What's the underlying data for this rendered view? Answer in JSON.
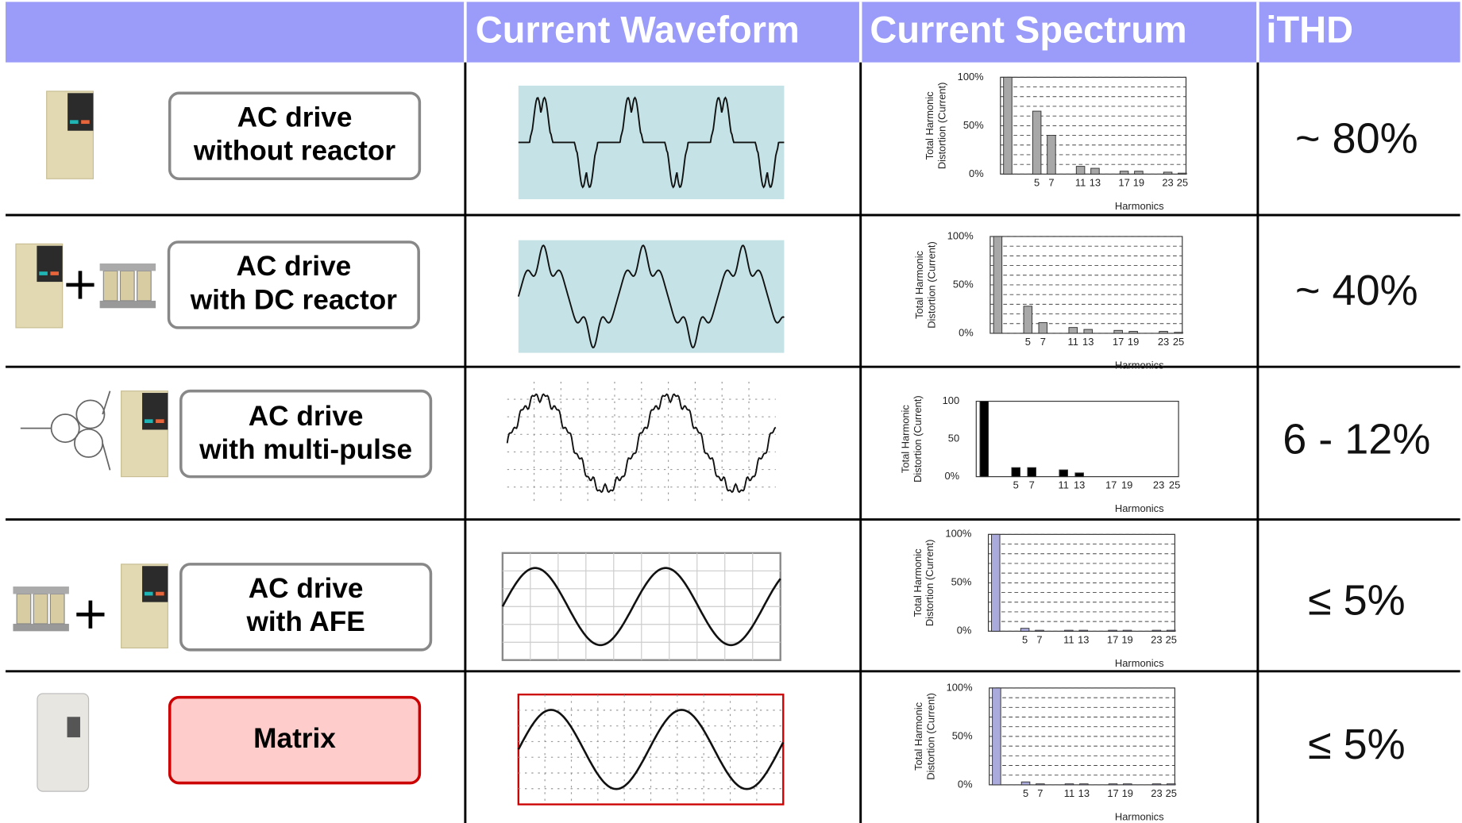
{
  "header": {
    "columns": [
      "Current Waveform",
      "Current Spectrum",
      "iTHD"
    ]
  },
  "rows": [
    {
      "label": [
        "AC drive",
        "without reactor"
      ],
      "ithd": "~ 80%",
      "spectrum": {
        "y_label": [
          "Total Harmonic",
          "Distortion (Current)"
        ],
        "ylim": [
          0,
          100
        ],
        "yticks": [
          {
            "value": 0,
            "label": "0%"
          },
          {
            "value": 50,
            "label": "50%"
          },
          {
            "value": 100,
            "label": "100%"
          }
        ],
        "xlim": [
          0,
          25.5
        ],
        "xticks": [
          5,
          7,
          11,
          13,
          17,
          19,
          23,
          25
        ],
        "x_label": "Harmonics",
        "x": [
          1,
          5,
          7,
          11,
          13,
          17,
          19,
          23,
          25
        ],
        "values": [
          100,
          65,
          40,
          8,
          6,
          3,
          3,
          2,
          1
        ],
        "color": "#a8a8a8",
        "grid": true
      }
    },
    {
      "label": [
        "AC drive",
        "with DC reactor"
      ],
      "ithd": "~ 40%",
      "spectrum": {
        "y_label": [
          "Total Harmonic",
          "Distortion (Current)"
        ],
        "ylim": [
          0,
          100
        ],
        "yticks": [
          {
            "value": 0,
            "label": "0%"
          },
          {
            "value": 50,
            "label": "50%"
          },
          {
            "value": 100,
            "label": "100%"
          }
        ],
        "xlim": [
          0,
          25.5
        ],
        "xticks": [
          5,
          7,
          11,
          13,
          17,
          19,
          23,
          25
        ],
        "x_label": "Harmonics",
        "x": [
          1,
          5,
          7,
          11,
          13,
          17,
          19,
          23,
          25
        ],
        "values": [
          100,
          28,
          11,
          6,
          4,
          3,
          2,
          2,
          1
        ],
        "color": "#a8a8a8",
        "grid": true
      }
    },
    {
      "label": [
        "AC drive",
        "with multi-pulse"
      ],
      "ithd": "6 - 12%",
      "spectrum": {
        "y_label": [
          "Total Harmonic",
          "Distortion (Current)"
        ],
        "ylim": [
          0,
          100
        ],
        "yticks": [
          {
            "value": 0,
            "label": "0%"
          },
          50,
          100
        ],
        "xlim": [
          0,
          25.5
        ],
        "xticks": [
          5,
          7,
          11,
          13,
          17,
          19,
          23,
          25
        ],
        "x_label": "Harmonics",
        "x": [
          1,
          5,
          7,
          11,
          13
        ],
        "values": [
          100,
          12,
          12,
          9,
          5
        ],
        "color": "#000000",
        "grid": false
      }
    },
    {
      "label": [
        "AC drive",
        "with AFE"
      ],
      "ithd": "≤ 5%",
      "spectrum": {
        "y_label": [
          "Total Harmonic",
          "Distortion (Current)"
        ],
        "ylim": [
          0,
          100
        ],
        "yticks": [
          {
            "value": 0,
            "label": "0%"
          },
          {
            "value": 50,
            "label": "50%"
          },
          {
            "value": 100,
            "label": "100%"
          }
        ],
        "xlim": [
          0,
          25.5
        ],
        "xticks": [
          5,
          7,
          11,
          13,
          17,
          19,
          23,
          25
        ],
        "x_label": "Harmonics",
        "x": [
          1,
          5,
          7,
          11,
          13,
          17,
          19,
          23,
          25
        ],
        "values": [
          100,
          3,
          1,
          1,
          1,
          1,
          1,
          1,
          1
        ],
        "color": "#aaaadd",
        "grid": true
      }
    },
    {
      "label": [
        "Matrix"
      ],
      "ithd": "≤ 5%",
      "spectrum": {
        "y_label": [
          "Total Harmonic",
          "Distortion (Current)"
        ],
        "ylim": [
          0,
          100
        ],
        "yticks": [
          {
            "value": 0,
            "label": "0%"
          },
          {
            "value": 50,
            "label": "50%"
          },
          {
            "value": 100,
            "label": "100%"
          }
        ],
        "xlim": [
          0,
          25.5
        ],
        "xticks": [
          5,
          7,
          11,
          13,
          17,
          19,
          23,
          25
        ],
        "x_label": "Harmonics",
        "x": [
          1,
          5,
          7,
          11,
          13,
          17,
          19,
          23,
          25
        ],
        "values": [
          100,
          3,
          1,
          1,
          1,
          1,
          1,
          1,
          1
        ],
        "color": "#aaaadd",
        "grid": true
      }
    }
  ]
}
